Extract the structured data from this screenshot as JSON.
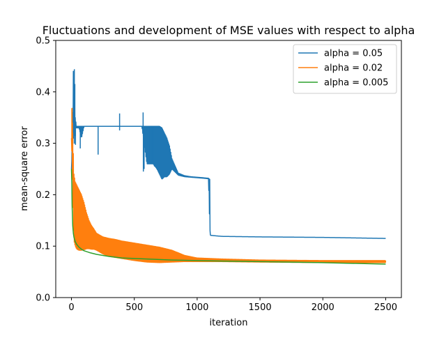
{
  "chart_data": {
    "type": "line",
    "title": "Fluctuations and development of MSE values with respect to alpha",
    "xlabel": "iteration",
    "ylabel": "mean-square error",
    "xlim": [
      -125,
      2625
    ],
    "ylim": [
      0.0,
      0.5
    ],
    "xticks": [
      0,
      500,
      1000,
      1500,
      2000,
      2500
    ],
    "xtick_labels": [
      "0",
      "500",
      "1000",
      "1500",
      "2000",
      "2500"
    ],
    "yticks": [
      0.0,
      0.1,
      0.2,
      0.3,
      0.4,
      0.5
    ],
    "ytick_labels": [
      "0.0",
      "0.1",
      "0.2",
      "0.3",
      "0.4",
      "0.5"
    ],
    "grid": false,
    "legend_position": "top-right",
    "series": [
      {
        "name": "alpha = 0.05",
        "color": "#1f77b4",
        "envelope": {
          "x": [
            0,
            5,
            10,
            15,
            20,
            25,
            30,
            40,
            60,
            80,
            100,
            150,
            200,
            220,
            250,
            300,
            380,
            400,
            500,
            560,
            600,
            650,
            680,
            700,
            720,
            740,
            760,
            780,
            800,
            850,
            900,
            950,
            1000,
            1050,
            1090,
            1100,
            1105,
            1110,
            1150,
            1200,
            1500,
            2000,
            2500
          ],
          "lo": [
            0.25,
            0.28,
            0.31,
            0.32,
            0.3,
            0.3,
            0.33,
            0.33,
            0.33,
            0.31,
            0.333,
            0.333,
            0.333,
            0.333,
            0.333,
            0.333,
            0.333,
            0.333,
            0.333,
            0.333,
            0.26,
            0.26,
            0.25,
            0.24,
            0.23,
            0.235,
            0.235,
            0.24,
            0.25,
            0.238,
            0.235,
            0.234,
            0.233,
            0.232,
            0.231,
            0.14,
            0.121,
            0.121,
            0.12,
            0.119,
            0.118,
            0.117,
            0.115
          ],
          "hi": [
            0.25,
            0.3,
            0.36,
            0.44,
            0.42,
            0.415,
            0.35,
            0.333,
            0.333,
            0.333,
            0.333,
            0.333,
            0.333,
            0.333,
            0.333,
            0.333,
            0.333,
            0.333,
            0.333,
            0.333,
            0.333,
            0.333,
            0.333,
            0.333,
            0.33,
            0.32,
            0.31,
            0.295,
            0.27,
            0.242,
            0.237,
            0.235,
            0.234,
            0.233,
            0.232,
            0.23,
            0.122,
            0.121,
            0.12,
            0.119,
            0.118,
            0.117,
            0.115
          ]
        },
        "spikes": [
          {
            "x": 23,
            "y0": 0.333,
            "y1": 0.444
          },
          {
            "x": 27,
            "y0": 0.333,
            "y1": 0.415
          },
          {
            "x": 32,
            "y0": 0.333,
            "y1": 0.297
          },
          {
            "x": 70,
            "y0": 0.333,
            "y1": 0.29
          },
          {
            "x": 212,
            "y0": 0.333,
            "y1": 0.278
          },
          {
            "x": 383,
            "y0": 0.333,
            "y1": 0.358
          },
          {
            "x": 383,
            "y0": 0.333,
            "y1": 0.325
          },
          {
            "x": 570,
            "y0": 0.333,
            "y1": 0.36
          },
          {
            "x": 572,
            "y0": 0.333,
            "y1": 0.245
          },
          {
            "x": 578,
            "y0": 0.333,
            "y1": 0.25
          },
          {
            "x": 612,
            "y0": 0.333,
            "y1": 0.28
          },
          {
            "x": 615,
            "y0": 0.333,
            "y1": 0.26
          },
          {
            "x": 640,
            "y0": 0.333,
            "y1": 0.262
          },
          {
            "x": 660,
            "y0": 0.333,
            "y1": 0.255
          }
        ]
      },
      {
        "name": "alpha = 0.02",
        "color": "#ff7f0e",
        "envelope": {
          "x": [
            0,
            5,
            10,
            15,
            20,
            30,
            40,
            50,
            60,
            70,
            80,
            100,
            120,
            140,
            160,
            180,
            200,
            250,
            300,
            350,
            400,
            450,
            500,
            600,
            700,
            800,
            900,
            1000,
            1200,
            1500,
            2000,
            2500
          ],
          "lo": [
            0.31,
            0.26,
            0.2,
            0.15,
            0.11,
            0.1,
            0.095,
            0.093,
            0.092,
            0.092,
            0.092,
            0.093,
            0.095,
            0.095,
            0.094,
            0.094,
            0.092,
            0.085,
            0.08,
            0.078,
            0.076,
            0.074,
            0.072,
            0.069,
            0.068,
            0.069,
            0.07,
            0.07,
            0.07,
            0.069,
            0.068,
            0.068
          ],
          "hi": [
            0.31,
            0.368,
            0.32,
            0.28,
            0.24,
            0.225,
            0.22,
            0.215,
            0.21,
            0.205,
            0.2,
            0.185,
            0.165,
            0.15,
            0.14,
            0.133,
            0.125,
            0.118,
            0.115,
            0.113,
            0.11,
            0.108,
            0.106,
            0.102,
            0.098,
            0.092,
            0.082,
            0.077,
            0.075,
            0.073,
            0.072,
            0.072
          ]
        },
        "spikes": [
          {
            "x": 3,
            "y0": 0.3,
            "y1": 0.368
          },
          {
            "x": 8,
            "y0": 0.28,
            "y1": 0.34
          }
        ]
      },
      {
        "name": "alpha = 0.005",
        "color": "#2ca02c",
        "line": {
          "x": [
            0,
            3,
            5,
            10,
            15,
            20,
            30,
            40,
            60,
            80,
            100,
            150,
            200,
            300,
            400,
            500,
            600,
            700,
            800,
            1000,
            1200,
            1500,
            2000,
            2500
          ],
          "y": [
            0.25,
            0.22,
            0.18,
            0.14,
            0.125,
            0.117,
            0.109,
            0.104,
            0.098,
            0.094,
            0.091,
            0.087,
            0.084,
            0.08,
            0.077,
            0.076,
            0.075,
            0.074,
            0.073,
            0.072,
            0.071,
            0.07,
            0.068,
            0.065
          ]
        }
      }
    ]
  }
}
